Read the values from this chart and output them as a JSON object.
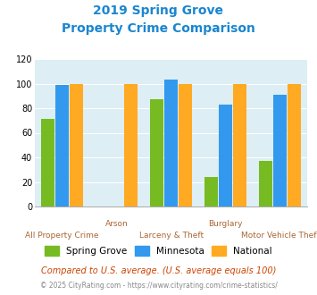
{
  "title_line1": "2019 Spring Grove",
  "title_line2": "Property Crime Comparison",
  "groups": [
    {
      "label": "All Property Crime",
      "spring_grove": 71,
      "minnesota": 99,
      "national": 100
    },
    {
      "label": "Arson",
      "spring_grove": null,
      "minnesota": null,
      "national": 100
    },
    {
      "label": "Larceny & Theft",
      "spring_grove": 87,
      "minnesota": 103,
      "national": 100
    },
    {
      "label": "Burglary",
      "spring_grove": 24,
      "minnesota": 83,
      "national": 100
    },
    {
      "label": "Motor Vehicle Theft",
      "spring_grove": 37,
      "minnesota": 91,
      "national": 100
    }
  ],
  "bottom_labels": {
    "0": "All Property Crime",
    "2": "Larceny & Theft",
    "4": "Motor Vehicle Theft"
  },
  "top_labels": {
    "1": "Arson",
    "3": "Burglary"
  },
  "color_spring_grove": "#77bb22",
  "color_minnesota": "#3399ee",
  "color_national": "#ffaa22",
  "ylim": [
    0,
    120
  ],
  "yticks": [
    0,
    20,
    40,
    60,
    80,
    100,
    120
  ],
  "title_color": "#1a86d0",
  "xlabel_color": "#aa6633",
  "bg_color": "#ddeef5",
  "legend_labels": [
    "Spring Grove",
    "Minnesota",
    "National"
  ],
  "footnote1": "Compared to U.S. average. (U.S. average equals 100)",
  "footnote2": "© 2025 CityRating.com - https://www.cityrating.com/crime-statistics/",
  "bar_width": 0.21
}
